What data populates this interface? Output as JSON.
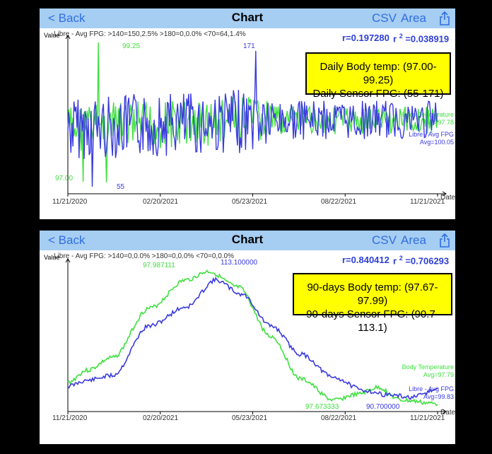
{
  "panels": [
    {
      "nav": {
        "back": "< Back",
        "title": "Chart",
        "csv": "CSV",
        "area": "Area",
        "share_icon": "share-icon"
      },
      "stats_line": "Libre - Avg FPG: >140=150,2.5%  >180=0,0.0%  <70=64,1.4%",
      "ylabel": "Value",
      "xlabel": "Date",
      "r": "r=0.197280",
      "r2_label": "r",
      "r2_sup": "2",
      "r2_value": "=0.038919",
      "annotation": [
        "Daily Body temp: (97.00-99.25)",
        "Daily Sensor FPG: (55-171)"
      ],
      "legend_green": [
        "Body Temperature",
        "Avg=97.78"
      ],
      "legend_blue": [
        "Libre - Avg FPG",
        "Avg=100.05"
      ],
      "x_ticks": [
        "11/21/2020",
        "02/20/2021",
        "05/23/2021",
        "08/22/2021",
        "11/21/2021"
      ],
      "labels": {
        "green_max": "99.25",
        "green_min": "97.00",
        "blue_max": "171",
        "blue_min": "55"
      }
    },
    {
      "nav": {
        "back": "< Back",
        "title": "Chart",
        "csv": "CSV",
        "area": "Area",
        "share_icon": "share-icon"
      },
      "stats_line": "Libre - Avg FPG: >140=0,0.0%  >180=0,0.0%  <70=0,0.0%",
      "ylabel": "Value",
      "xlabel": "Date",
      "r": "r=0.840412",
      "r2_label": "r",
      "r2_sup": "2",
      "r2_value": "=0.706293",
      "annotation": [
        "90-days Body temp: (97.67-97.99)",
        "90-days Sensor FPG: (90.7-113.1)"
      ],
      "legend_green": [
        "Body Temperature",
        "Avg=97.79"
      ],
      "legend_blue": [
        "Libre - Avg FPG",
        "Avg=99.83"
      ],
      "x_ticks": [
        "11/21/2020",
        "02/20/2021",
        "05/23/2021",
        "08/22/2021",
        "11/21/2021"
      ],
      "labels": {
        "green_max": "97.987111",
        "green_min": "97.673333",
        "blue_max": "113.100000",
        "blue_min": "90.700000"
      }
    }
  ],
  "colors": {
    "green": "#3fe03f",
    "blue": "#3a3adf",
    "navbar": "#a6cdf2",
    "link": "#2f6fe0",
    "highlight": "#ffff00"
  },
  "chart_data": [
    {
      "type": "line",
      "x": [
        "11/21/2020",
        "02/20/2021",
        "05/23/2021",
        "08/22/2021",
        "11/21/2021"
      ],
      "series": [
        {
          "name": "Body Temperature",
          "values": [
            97.8,
            99.25,
            97.7,
            97.6,
            97.8
          ],
          "min": 97.0,
          "max": 99.25,
          "avg": 97.78
        },
        {
          "name": "Libre - Avg FPG",
          "values": [
            100,
            120,
            98,
            96,
            102
          ],
          "min": 55,
          "max": 171,
          "avg": 100.05
        }
      ],
      "ylabel": "Value",
      "xlabel": "Date"
    },
    {
      "type": "line",
      "x": [
        "11/21/2020",
        "02/20/2021",
        "05/23/2021",
        "08/22/2021",
        "11/21/2021"
      ],
      "series": [
        {
          "name": "Body Temperature",
          "values": [
            97.72,
            97.93,
            97.82,
            97.69,
            97.7
          ],
          "min": 97.673333,
          "max": 97.987111,
          "avg": 97.79
        },
        {
          "name": "Libre - Avg FPG",
          "values": [
            92,
            104,
            106,
            93,
            94
          ],
          "min": 90.7,
          "max": 113.1,
          "avg": 99.83
        }
      ],
      "ylabel": "Value",
      "xlabel": "Date"
    }
  ]
}
